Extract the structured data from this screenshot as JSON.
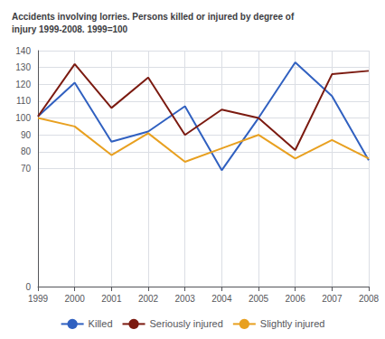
{
  "chart_data": {
    "type": "line",
    "title": "Accidents involving lorries. Persons killed or injured by degree of\ninjury 1999-2008. 1999=100",
    "x": [
      1999,
      2000,
      2001,
      2002,
      2003,
      2004,
      2005,
      2006,
      2007,
      2008
    ],
    "series": [
      {
        "name": "Killed",
        "color": "#3060c0",
        "values": [
          101,
          121,
          86,
          92,
          107,
          69,
          100,
          133,
          113,
          75
        ]
      },
      {
        "name": "Seriously injured",
        "color": "#7b1a10",
        "values": [
          101,
          132,
          106,
          124,
          90,
          105,
          100,
          81,
          126,
          128
        ]
      },
      {
        "name": "Slightly injured",
        "color": "#e8a020",
        "values": [
          100,
          95,
          78,
          91,
          74,
          82,
          90,
          76,
          87,
          76
        ]
      }
    ],
    "xlim": [
      1999,
      2008
    ],
    "xticks": [
      1999,
      2000,
      2001,
      2002,
      2003,
      2004,
      2005,
      2006,
      2007,
      2008
    ],
    "ylim": [
      0,
      140
    ],
    "yticks": [
      0,
      70,
      80,
      90,
      100,
      110,
      120,
      130,
      140
    ],
    "grid": true,
    "legend": "bottom"
  }
}
